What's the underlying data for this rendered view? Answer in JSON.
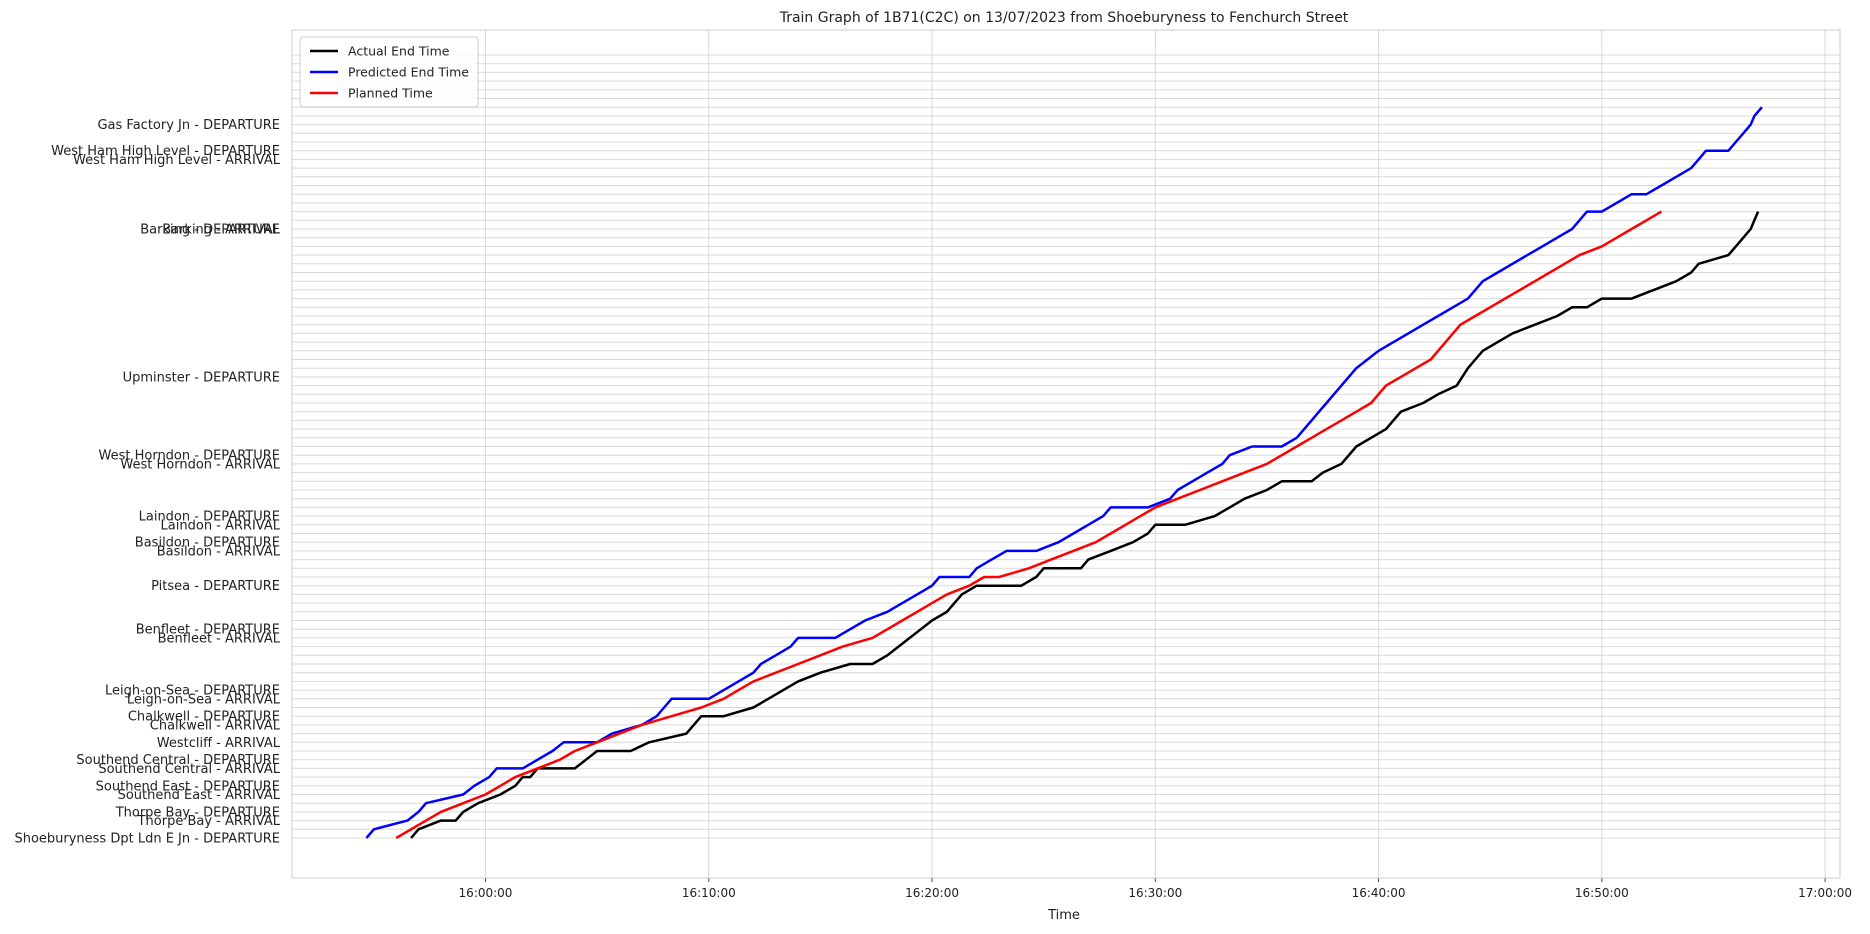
{
  "chart_data": {
    "type": "line",
    "title": "Train Graph of 1B71(C2C) on 13/07/2023 from Shoeburyness to Fenchurch Street",
    "xlabel": "Time",
    "ylabel": "",
    "grid": true,
    "legend_position": "top-left",
    "x_ticks": [
      "16:00:00",
      "16:10:00",
      "16:20:00",
      "16:30:00",
      "16:40:00",
      "16:50:00",
      "17:00:00"
    ],
    "xlim": [
      "15:51:20",
      "17:00:40"
    ],
    "row_count": 91,
    "y_rows": [
      {
        "label": "Gas Factory Jn - DEPARTURE",
        "row": 82
      },
      {
        "label": "West Ham High Level - DEPARTURE",
        "row": 79
      },
      {
        "label": "West Ham High Level - ARRIVAL",
        "row": 78
      },
      {
        "label": "Barking - DEPARTURE",
        "row": 70
      },
      {
        "label": "Barking - ARRIVAL",
        "row": 70
      },
      {
        "label": "Upminster - DEPARTURE",
        "row": 53
      },
      {
        "label": "West Horndon - DEPARTURE",
        "row": 44
      },
      {
        "label": "West Horndon - ARRIVAL",
        "row": 43
      },
      {
        "label": "Laindon - DEPARTURE",
        "row": 37
      },
      {
        "label": "Laindon - ARRIVAL",
        "row": 36
      },
      {
        "label": "Basildon - DEPARTURE",
        "row": 34
      },
      {
        "label": "Basildon - ARRIVAL",
        "row": 33
      },
      {
        "label": "Pitsea - DEPARTURE",
        "row": 29
      },
      {
        "label": "Benfleet - DEPARTURE",
        "row": 24
      },
      {
        "label": "Benfleet - ARRIVAL",
        "row": 23
      },
      {
        "label": "Leigh-on-Sea - DEPARTURE",
        "row": 17
      },
      {
        "label": "Leigh-on-Sea - ARRIVAL",
        "row": 16
      },
      {
        "label": "Chalkwell - DEPARTURE",
        "row": 14
      },
      {
        "label": "Chalkwell - ARRIVAL",
        "row": 13
      },
      {
        "label": "Westcliff - ARRIVAL",
        "row": 11
      },
      {
        "label": "Southend Central - DEPARTURE",
        "row": 9
      },
      {
        "label": "Southend Central - ARRIVAL",
        "row": 8
      },
      {
        "label": "Southend East - DEPARTURE",
        "row": 6
      },
      {
        "label": "Southend East - ARRIVAL",
        "row": 5
      },
      {
        "label": "Thorpe Bay - DEPARTURE",
        "row": 3
      },
      {
        "label": "Thorpe Bay - ARRIVAL",
        "row": 2
      },
      {
        "label": "Shoeburyness Dpt Ldn E Jn - DEPARTURE",
        "row": 0
      }
    ],
    "series": [
      {
        "name": "Actual End Time",
        "color": "#000000",
        "points": [
          [
            "15:56:40",
            0
          ],
          [
            "15:57:00",
            1
          ],
          [
            "15:58:00",
            2
          ],
          [
            "15:58:40",
            2
          ],
          [
            "15:59:00",
            3
          ],
          [
            "15:59:40",
            4
          ],
          [
            "16:00:40",
            5
          ],
          [
            "16:01:20",
            6
          ],
          [
            "16:01:40",
            7
          ],
          [
            "16:02:00",
            7
          ],
          [
            "16:02:20",
            8
          ],
          [
            "16:04:00",
            8
          ],
          [
            "16:04:30",
            9
          ],
          [
            "16:05:00",
            10
          ],
          [
            "16:06:30",
            10
          ],
          [
            "16:07:20",
            11
          ],
          [
            "16:09:00",
            12
          ],
          [
            "16:09:40",
            14
          ],
          [
            "16:10:40",
            14
          ],
          [
            "16:12:00",
            15
          ],
          [
            "16:12:40",
            16
          ],
          [
            "16:14:00",
            18
          ],
          [
            "16:15:00",
            19
          ],
          [
            "16:16:20",
            20
          ],
          [
            "16:16:40",
            20
          ],
          [
            "16:17:20",
            20
          ],
          [
            "16:18:00",
            21
          ],
          [
            "16:19:00",
            23
          ],
          [
            "16:19:30",
            24
          ],
          [
            "16:20:00",
            25
          ],
          [
            "16:20:40",
            26
          ],
          [
            "16:21:20",
            28
          ],
          [
            "16:22:00",
            29
          ],
          [
            "16:23:20",
            29
          ],
          [
            "16:24:00",
            29
          ],
          [
            "16:24:40",
            30
          ],
          [
            "16:25:00",
            31
          ],
          [
            "16:26:40",
            31
          ],
          [
            "16:27:00",
            32
          ],
          [
            "16:28:00",
            33
          ],
          [
            "16:29:00",
            34
          ],
          [
            "16:29:40",
            35
          ],
          [
            "16:30:00",
            36
          ],
          [
            "16:31:20",
            36
          ],
          [
            "16:32:40",
            37
          ],
          [
            "16:33:20",
            38
          ],
          [
            "16:34:00",
            39
          ],
          [
            "16:35:00",
            40
          ],
          [
            "16:35:40",
            41
          ],
          [
            "16:37:00",
            41
          ],
          [
            "16:37:30",
            42
          ],
          [
            "16:38:20",
            43
          ],
          [
            "16:39:00",
            45
          ],
          [
            "16:39:40",
            46
          ],
          [
            "16:40:20",
            47
          ],
          [
            "16:41:00",
            49
          ],
          [
            "16:42:00",
            50
          ],
          [
            "16:42:40",
            51
          ],
          [
            "16:43:30",
            52
          ],
          [
            "16:44:00",
            54
          ],
          [
            "16:44:20",
            55
          ],
          [
            "16:44:40",
            56
          ],
          [
            "16:45:20",
            57
          ],
          [
            "16:46:00",
            58
          ],
          [
            "16:47:00",
            59
          ],
          [
            "16:48:00",
            60
          ],
          [
            "16:48:40",
            61
          ],
          [
            "16:49:20",
            61
          ],
          [
            "16:50:00",
            62
          ],
          [
            "16:51:20",
            62
          ],
          [
            "16:52:20",
            63
          ],
          [
            "16:53:20",
            64
          ],
          [
            "16:54:00",
            65
          ],
          [
            "16:54:20",
            66
          ],
          [
            "16:55:40",
            67
          ],
          [
            "16:56:00",
            68
          ],
          [
            "16:56:20",
            69
          ],
          [
            "16:56:40",
            70
          ],
          [
            "16:56:50",
            71
          ],
          [
            "16:57:00",
            72
          ]
        ]
      },
      {
        "name": "Predicted End Time",
        "color": "#0000ff",
        "points": [
          [
            "15:54:40",
            0
          ],
          [
            "15:55:00",
            1
          ],
          [
            "15:56:30",
            2
          ],
          [
            "15:57:00",
            3
          ],
          [
            "15:57:20",
            4
          ],
          [
            "15:59:00",
            5
          ],
          [
            "15:59:30",
            6
          ],
          [
            "16:00:10",
            7
          ],
          [
            "16:00:30",
            8
          ],
          [
            "16:01:40",
            8
          ],
          [
            "16:02:20",
            9
          ],
          [
            "16:03:00",
            10
          ],
          [
            "16:03:30",
            11
          ],
          [
            "16:05:00",
            11
          ],
          [
            "16:05:40",
            12
          ],
          [
            "16:07:00",
            13
          ],
          [
            "16:07:40",
            14
          ],
          [
            "16:08:00",
            15
          ],
          [
            "16:08:20",
            16
          ],
          [
            "16:10:00",
            16
          ],
          [
            "16:10:40",
            17
          ],
          [
            "16:11:20",
            18
          ],
          [
            "16:12:00",
            19
          ],
          [
            "16:12:20",
            20
          ],
          [
            "16:13:00",
            21
          ],
          [
            "16:13:40",
            22
          ],
          [
            "16:14:00",
            23
          ],
          [
            "16:15:40",
            23
          ],
          [
            "16:16:20",
            24
          ],
          [
            "16:17:00",
            25
          ],
          [
            "16:18:00",
            26
          ],
          [
            "16:18:40",
            27
          ],
          [
            "16:19:20",
            28
          ],
          [
            "16:20:00",
            29
          ],
          [
            "16:20:20",
            30
          ],
          [
            "16:21:40",
            30
          ],
          [
            "16:22:00",
            31
          ],
          [
            "16:22:40",
            32
          ],
          [
            "16:23:20",
            33
          ],
          [
            "16:24:40",
            33
          ],
          [
            "16:25:40",
            34
          ],
          [
            "16:26:20",
            35
          ],
          [
            "16:27:00",
            36
          ],
          [
            "16:27:40",
            37
          ],
          [
            "16:28:00",
            38
          ],
          [
            "16:29:40",
            38
          ],
          [
            "16:30:40",
            39
          ],
          [
            "16:31:00",
            40
          ],
          [
            "16:31:40",
            41
          ],
          [
            "16:32:20",
            42
          ],
          [
            "16:33:00",
            43
          ],
          [
            "16:33:20",
            44
          ],
          [
            "16:34:20",
            45
          ],
          [
            "16:35:40",
            45
          ],
          [
            "16:36:20",
            46
          ],
          [
            "16:36:40",
            47
          ],
          [
            "16:37:00",
            48
          ],
          [
            "16:37:20",
            49
          ],
          [
            "16:37:40",
            50
          ],
          [
            "16:38:00",
            51
          ],
          [
            "16:38:20",
            52
          ],
          [
            "16:38:40",
            53
          ],
          [
            "16:39:00",
            54
          ],
          [
            "16:39:30",
            55
          ],
          [
            "16:40:00",
            56
          ],
          [
            "16:40:40",
            57
          ],
          [
            "16:41:20",
            58
          ],
          [
            "16:42:00",
            59
          ],
          [
            "16:42:40",
            60
          ],
          [
            "16:43:20",
            61
          ],
          [
            "16:44:00",
            62
          ],
          [
            "16:44:20",
            63
          ],
          [
            "16:44:40",
            64
          ],
          [
            "16:45:20",
            65
          ],
          [
            "16:46:00",
            66
          ],
          [
            "16:46:40",
            67
          ],
          [
            "16:47:20",
            68
          ],
          [
            "16:48:00",
            69
          ],
          [
            "16:48:40",
            70
          ],
          [
            "16:49:00",
            71
          ],
          [
            "16:49:20",
            72
          ],
          [
            "16:50:00",
            72
          ],
          [
            "16:50:40",
            73
          ],
          [
            "16:51:20",
            74
          ],
          [
            "16:52:00",
            74
          ],
          [
            "16:52:40",
            75
          ],
          [
            "16:53:20",
            76
          ],
          [
            "16:54:00",
            77
          ],
          [
            "16:54:20",
            78
          ],
          [
            "16:54:40",
            79
          ],
          [
            "16:55:40",
            79
          ],
          [
            "16:56:00",
            80
          ],
          [
            "16:56:20",
            81
          ],
          [
            "16:56:40",
            82
          ],
          [
            "16:56:50",
            83
          ],
          [
            "16:57:10",
            84
          ]
        ]
      },
      {
        "name": "Planned Time",
        "color": "#ff0000",
        "points": [
          [
            "15:56:00",
            0
          ],
          [
            "15:57:20",
            2
          ],
          [
            "15:58:00",
            3
          ],
          [
            "15:59:00",
            4
          ],
          [
            "16:00:00",
            5
          ],
          [
            "16:00:40",
            6
          ],
          [
            "16:01:20",
            7
          ],
          [
            "16:02:20",
            8
          ],
          [
            "16:03:20",
            9
          ],
          [
            "16:04:00",
            10
          ],
          [
            "16:05:00",
            11
          ],
          [
            "16:06:00",
            12
          ],
          [
            "16:07:00",
            13
          ],
          [
            "16:08:20",
            14
          ],
          [
            "16:09:40",
            15
          ],
          [
            "16:10:40",
            16
          ],
          [
            "16:11:20",
            17
          ],
          [
            "16:12:00",
            18
          ],
          [
            "16:13:00",
            19
          ],
          [
            "16:14:00",
            20
          ],
          [
            "16:15:00",
            21
          ],
          [
            "16:16:00",
            22
          ],
          [
            "16:17:20",
            23
          ],
          [
            "16:18:00",
            24
          ],
          [
            "16:18:40",
            25
          ],
          [
            "16:19:20",
            26
          ],
          [
            "16:20:00",
            27
          ],
          [
            "16:20:40",
            28
          ],
          [
            "16:21:40",
            29
          ],
          [
            "16:22:20",
            30
          ],
          [
            "16:23:00",
            30
          ],
          [
            "16:24:20",
            31
          ],
          [
            "16:25:20",
            32
          ],
          [
            "16:26:20",
            33
          ],
          [
            "16:27:20",
            34
          ],
          [
            "16:28:00",
            35
          ],
          [
            "16:28:40",
            36
          ],
          [
            "16:29:20",
            37
          ],
          [
            "16:30:00",
            38
          ],
          [
            "16:31:00",
            39
          ],
          [
            "16:32:00",
            40
          ],
          [
            "16:33:00",
            41
          ],
          [
            "16:34:00",
            42
          ],
          [
            "16:35:00",
            43
          ],
          [
            "16:35:40",
            44
          ],
          [
            "16:36:20",
            45
          ],
          [
            "16:37:00",
            46
          ],
          [
            "16:37:40",
            47
          ],
          [
            "16:38:20",
            48
          ],
          [
            "16:39:00",
            49
          ],
          [
            "16:39:40",
            50
          ],
          [
            "16:40:20",
            52
          ],
          [
            "16:41:00",
            53
          ],
          [
            "16:41:40",
            54
          ],
          [
            "16:42:20",
            55
          ],
          [
            "16:43:00",
            57
          ],
          [
            "16:43:40",
            59
          ],
          [
            "16:44:20",
            60
          ],
          [
            "16:45:00",
            61
          ],
          [
            "16:45:40",
            62
          ],
          [
            "16:46:20",
            63
          ],
          [
            "16:47:00",
            64
          ],
          [
            "16:47:40",
            65
          ],
          [
            "16:48:20",
            66
          ],
          [
            "16:49:00",
            67
          ],
          [
            "16:50:00",
            68
          ],
          [
            "16:50:40",
            69
          ],
          [
            "16:51:20",
            70
          ],
          [
            "16:52:00",
            71
          ],
          [
            "16:52:40",
            72
          ]
        ]
      }
    ]
  }
}
